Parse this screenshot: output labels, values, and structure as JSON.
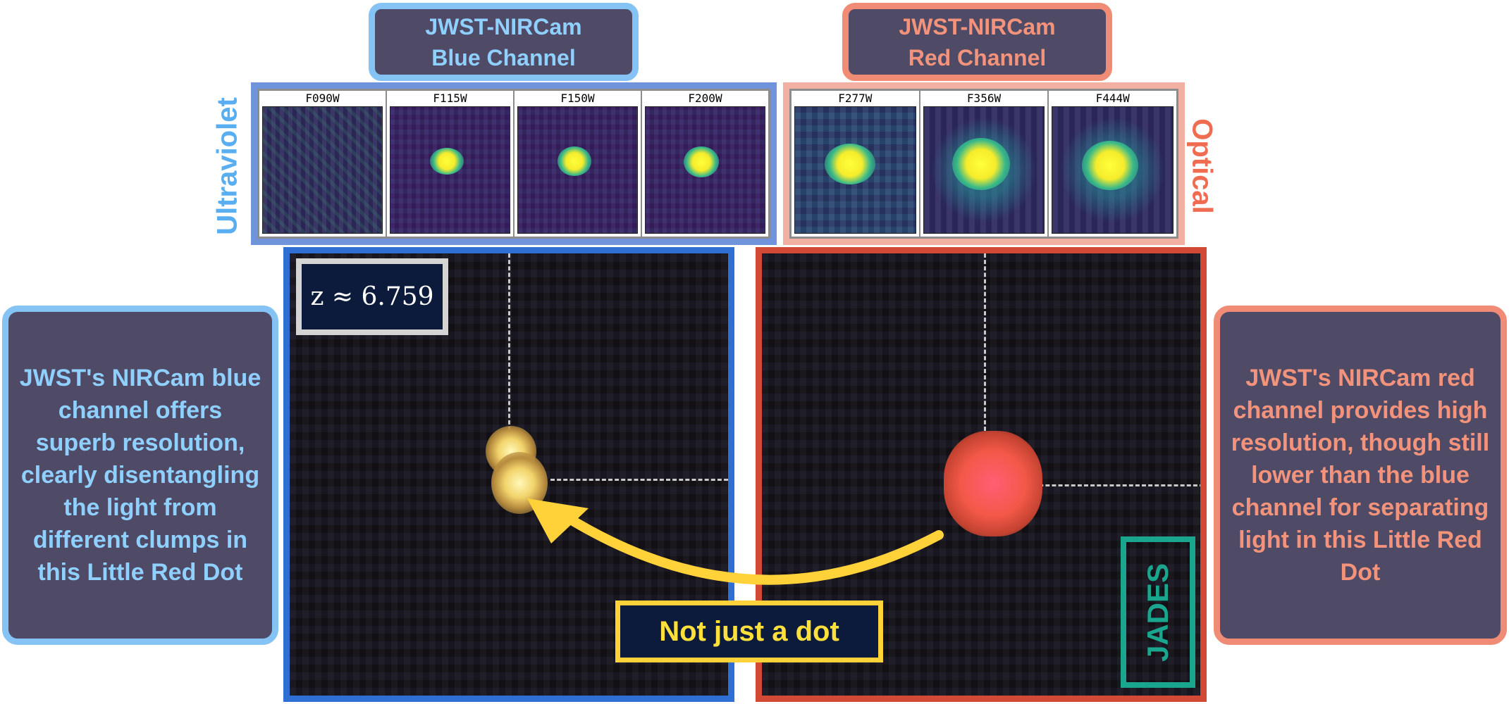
{
  "blue_channel": {
    "title_line1": "JWST-NIRCam",
    "title_line2": "Blue Channel",
    "side_label": "Ultraviolet",
    "filters": [
      "F090W",
      "F115W",
      "F150W",
      "F200W"
    ],
    "description": "JWST's NIRCam blue channel offers superb resolution, clearly disentangling the light from different clumps in this Little Red Dot",
    "accent_color": "#2f6fd3"
  },
  "red_channel": {
    "title_line1": "JWST-NIRCam",
    "title_line2": "Red Channel",
    "side_label": "Optical",
    "filters": [
      "F277W",
      "F356W",
      "F444W"
    ],
    "description": "JWST's NIRCam red channel provides high resolution, though still lower than the blue channel for separating light in this Little Red Dot",
    "accent_color": "#d24a36"
  },
  "redshift_label": "z ≈ 6.759",
  "annotation_label": "Not just a dot",
  "survey_label": "JADES"
}
